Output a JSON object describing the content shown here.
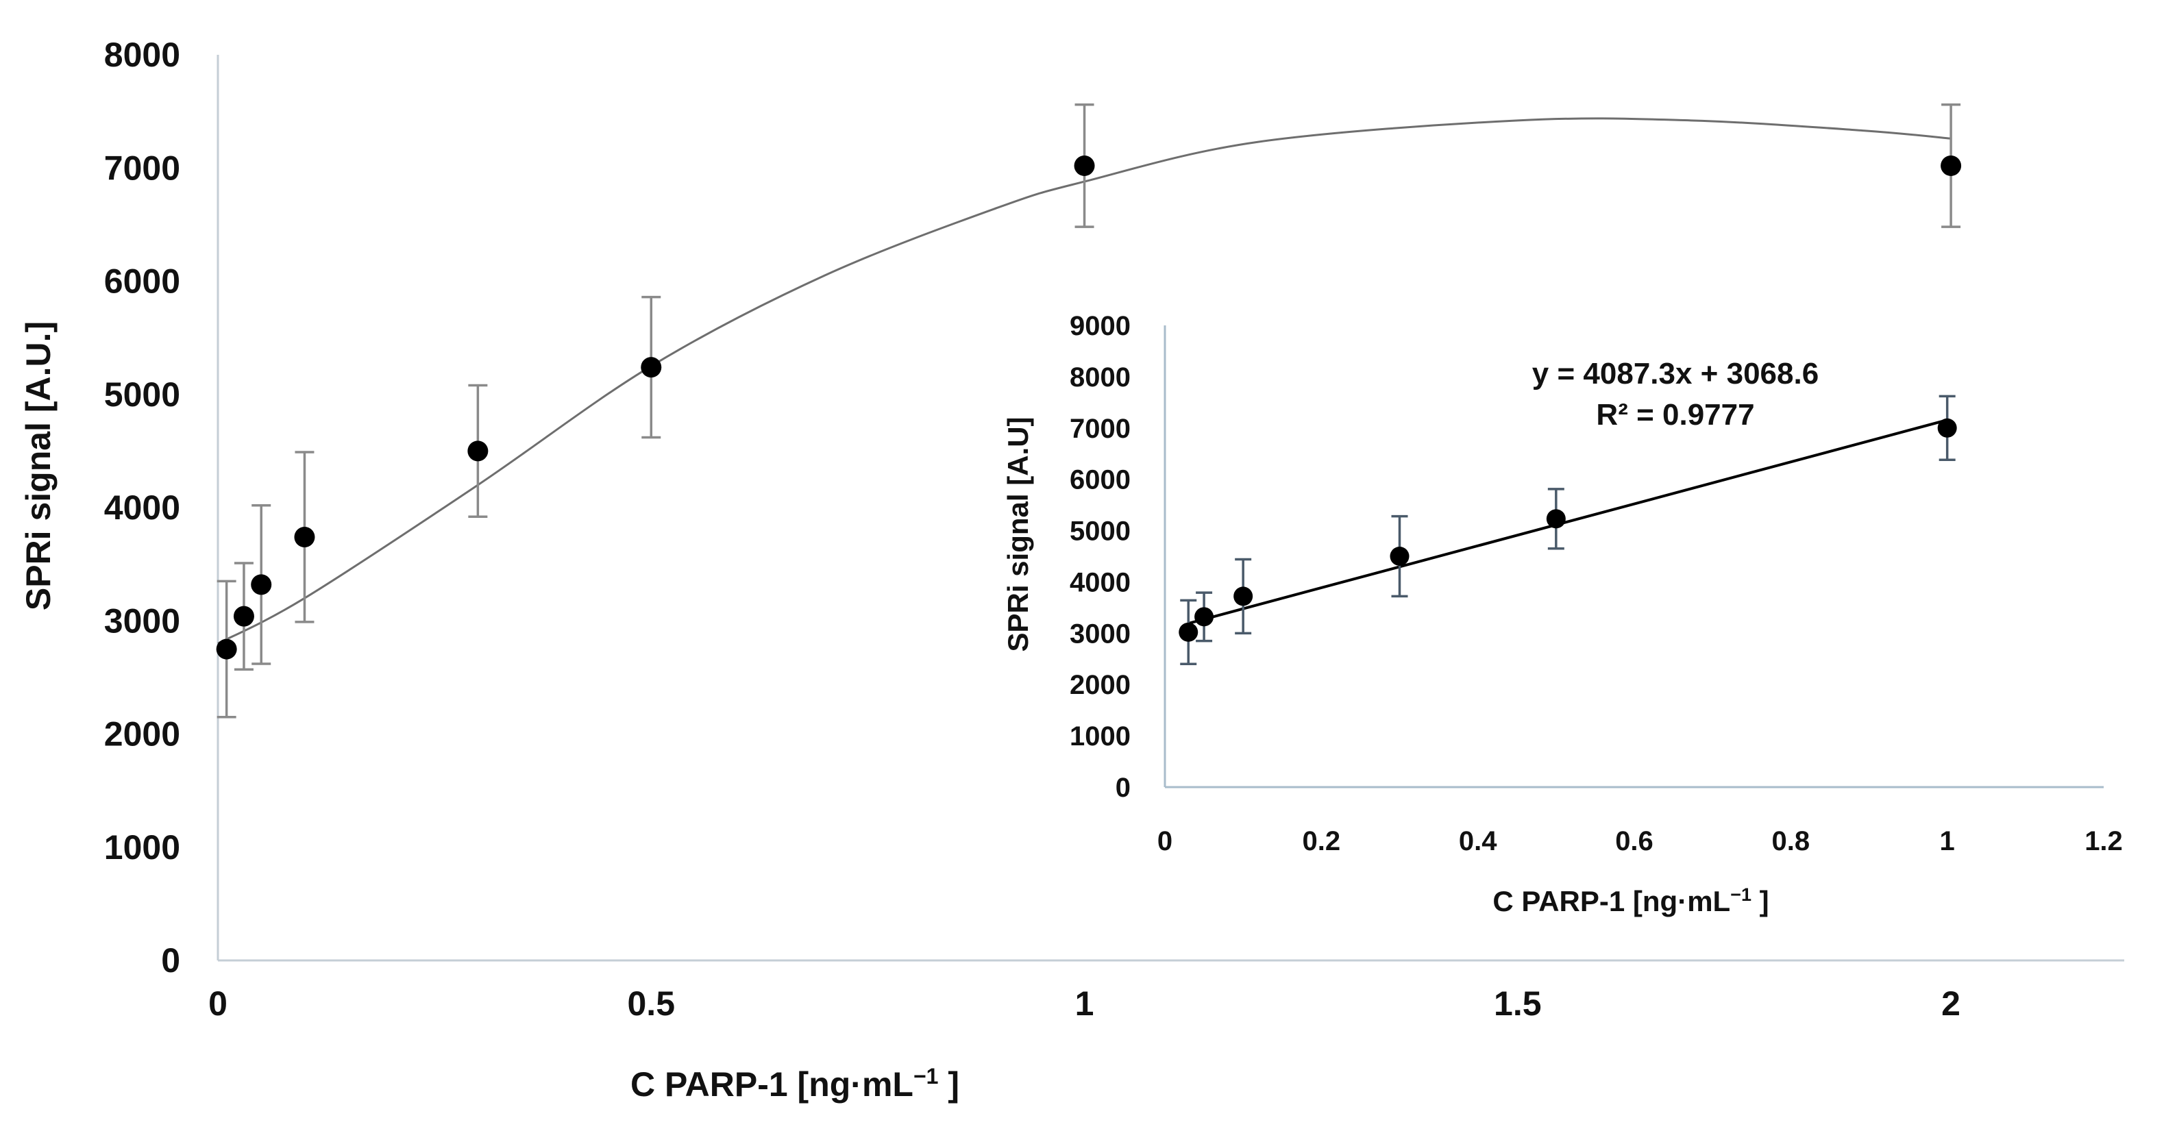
{
  "colors": {
    "axis": "#c5ced6",
    "inset_axis": "#a9bccb",
    "curve": "#6e6e6e",
    "main_error": "#8a8a8a",
    "inset_error": "#4a5a6a",
    "point": "#000000",
    "text": "#111111"
  },
  "chart_data": [
    {
      "id": "main",
      "type": "scatter",
      "xlabel": "C PARP-1 [ng·mL",
      "xlabel_sup": "−1",
      "xlabel_tail": " ]",
      "ylabel": "SPRi signal [A.U.]",
      "x_tick_labels": [
        "0",
        "0.5",
        "1",
        "1.5",
        "2"
      ],
      "x_tick_positions": [
        0,
        0.5,
        1,
        1.5,
        2
      ],
      "xlim": [
        0,
        2.2
      ],
      "ylim": [
        0,
        8000
      ],
      "y_ticks": [
        0,
        1000,
        2000,
        3000,
        4000,
        5000,
        6000,
        7000,
        8000
      ],
      "y_tick_labels": [
        "0",
        "1000",
        "2000",
        "3000",
        "4000",
        "5000",
        "6000",
        "7000",
        "8000"
      ],
      "grid": false,
      "points": [
        {
          "x": 0.01,
          "y": 2750,
          "err": 600
        },
        {
          "x": 0.03,
          "y": 3040,
          "err": 470
        },
        {
          "x": 0.05,
          "y": 3320,
          "err": 700
        },
        {
          "x": 0.1,
          "y": 3740,
          "err": 750
        },
        {
          "x": 0.3,
          "y": 4500,
          "err": 580
        },
        {
          "x": 0.5,
          "y": 5240,
          "err": 620
        },
        {
          "x": 1.0,
          "y": 7020,
          "err": 540
        },
        {
          "x": 2.0,
          "y": 7020,
          "err": 540
        }
      ],
      "curve": [
        {
          "x": 0.0,
          "y": 2800
        },
        {
          "x": 0.1,
          "y": 3200
        },
        {
          "x": 0.3,
          "y": 4200
        },
        {
          "x": 0.5,
          "y": 5250
        },
        {
          "x": 0.7,
          "y": 6050
        },
        {
          "x": 0.9,
          "y": 6650
        },
        {
          "x": 1.0,
          "y": 6880
        },
        {
          "x": 1.2,
          "y": 7230
        },
        {
          "x": 1.5,
          "y": 7420
        },
        {
          "x": 1.7,
          "y": 7420
        },
        {
          "x": 1.9,
          "y": 7330
        },
        {
          "x": 2.0,
          "y": 7260
        }
      ]
    },
    {
      "id": "inset",
      "type": "scatter",
      "xlabel": "C PARP-1 [ng·mL",
      "xlabel_sup": "−1",
      "xlabel_tail": " ]",
      "ylabel": "SPRi signal [A.U]",
      "x_ticks": [
        0,
        0.2,
        0.4,
        0.6,
        0.8,
        1,
        1.2
      ],
      "x_tick_labels": [
        "0",
        "0.2",
        "0.4",
        "0.6",
        "0.8",
        "1",
        "1.2"
      ],
      "xlim": [
        0,
        1.2
      ],
      "ylim": [
        0,
        9000
      ],
      "y_ticks": [
        0,
        1000,
        2000,
        3000,
        4000,
        5000,
        6000,
        7000,
        8000,
        9000
      ],
      "y_tick_labels": [
        "0",
        "1000",
        "2000",
        "3000",
        "4000",
        "5000",
        "6000",
        "7000",
        "8000",
        "9000"
      ],
      "grid": false,
      "points": [
        {
          "x": 0.03,
          "y": 3020,
          "err": 620
        },
        {
          "x": 0.05,
          "y": 3320,
          "err": 470
        },
        {
          "x": 0.1,
          "y": 3720,
          "err": 720
        },
        {
          "x": 0.3,
          "y": 4500,
          "err": 780
        },
        {
          "x": 0.5,
          "y": 5230,
          "err": 580
        },
        {
          "x": 1.0,
          "y": 7000,
          "err": 620
        }
      ],
      "trendline": {
        "slope": 4087.3,
        "intercept": 3068.6,
        "x_start": 0.03,
        "x_end": 1.0
      },
      "equation": "y = 4087.3x + 3068.6",
      "r_squared": "R² = 0.9777"
    }
  ]
}
